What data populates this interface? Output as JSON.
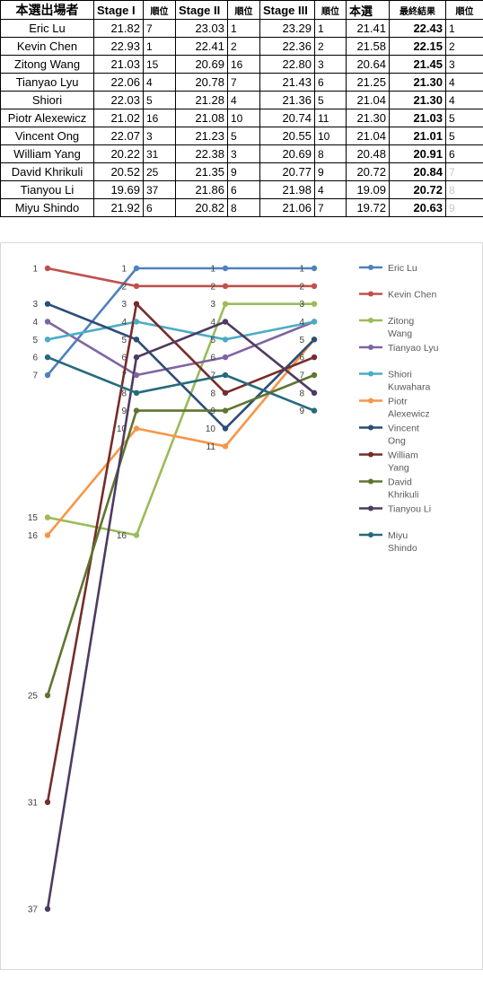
{
  "table": {
    "headers": [
      "本選出場者",
      "Stage I",
      "順位",
      "Stage II",
      "順位",
      "Stage III",
      "順位",
      "本選",
      "最終結果",
      "順位"
    ],
    "rows": [
      {
        "name": "Eric Lu",
        "s1": "21.82",
        "r1": "7",
        "s2": "23.03",
        "r2": "1",
        "s3": "23.29",
        "r3": "1",
        "final": "21.41",
        "result": "22.43",
        "rank": "1",
        "dim": false
      },
      {
        "name": "Kevin Chen",
        "s1": "22.93",
        "r1": "1",
        "s2": "22.41",
        "r2": "2",
        "s3": "22.36",
        "r3": "2",
        "final": "21.58",
        "result": "22.15",
        "rank": "2",
        "dim": false
      },
      {
        "name": "Zitong Wang",
        "s1": "21.03",
        "r1": "15",
        "s2": "20.69",
        "r2": "16",
        "s3": "22.80",
        "r3": "3",
        "final": "20.64",
        "result": "21.45",
        "rank": "3",
        "dim": false
      },
      {
        "name": "Tianyao Lyu",
        "s1": "22.06",
        "r1": "4",
        "s2": "20.78",
        "r2": "7",
        "s3": "21.43",
        "r3": "6",
        "final": "21.25",
        "result": "21.30",
        "rank": "4",
        "dim": false
      },
      {
        "name": "Shiori",
        "s1": "22.03",
        "r1": "5",
        "s2": "21.28",
        "r2": "4",
        "s3": "21.36",
        "r3": "5",
        "final": "21.04",
        "result": "21.30",
        "rank": "4",
        "dim": false
      },
      {
        "name": "Piotr Alexewicz",
        "s1": "21.02",
        "r1": "16",
        "s2": "21.08",
        "r2": "10",
        "s3": "20.74",
        "r3": "11",
        "final": "21.30",
        "result": "21.03",
        "rank": "5",
        "dim": false
      },
      {
        "name": "Vincent Ong",
        "s1": "22.07",
        "r1": "3",
        "s2": "21.23",
        "r2": "5",
        "s3": "20.55",
        "r3": "10",
        "final": "21.04",
        "result": "21.01",
        "rank": "5",
        "dim": false
      },
      {
        "name": "William Yang",
        "s1": "20.22",
        "r1": "31",
        "s2": "22.38",
        "r2": "3",
        "s3": "20.69",
        "r3": "8",
        "final": "20.48",
        "result": "20.91",
        "rank": "6",
        "dim": false
      },
      {
        "name": "David Khrikuli",
        "s1": "20.52",
        "r1": "25",
        "s2": "21.35",
        "r2": "9",
        "s3": "20.77",
        "r3": "9",
        "final": "20.72",
        "result": "20.84",
        "rank": "7",
        "dim": true
      },
      {
        "name": "Tianyou Li",
        "s1": "19.69",
        "r1": "37",
        "s2": "21.86",
        "r2": "6",
        "s3": "21.98",
        "r3": "4",
        "final": "19.09",
        "result": "20.72",
        "rank": "8",
        "dim": true
      },
      {
        "name": "Miyu Shindo",
        "s1": "21.92",
        "r1": "6",
        "s2": "20.82",
        "r2": "8",
        "s3": "21.06",
        "r3": "7",
        "final": "19.72",
        "result": "20.63",
        "rank": "9",
        "dim": true
      }
    ]
  },
  "chart_data": {
    "type": "line",
    "x": [
      "",
      "",
      "",
      ""
    ],
    "y_reversed": true,
    "ylim": [
      1,
      37
    ],
    "grid": false,
    "legend_placement": "right",
    "series": [
      {
        "name": "Eric Lu",
        "legend": [
          "Eric Lu"
        ],
        "color": "#4f81bd",
        "values": [
          7,
          1,
          1,
          1
        ]
      },
      {
        "name": "Kevin Chen",
        "legend": [
          "Kevin Chen"
        ],
        "color": "#c0504d",
        "values": [
          1,
          2,
          2,
          2
        ]
      },
      {
        "name": "Zitong Wang",
        "legend": [
          "Zitong",
          "Wang"
        ],
        "color": "#9bbb59",
        "values": [
          15,
          16,
          3,
          3
        ]
      },
      {
        "name": "Tianyao Lyu",
        "legend": [
          "Tianyao Lyu"
        ],
        "color": "#8064a2",
        "values": [
          4,
          7,
          6,
          4
        ]
      },
      {
        "name": "Shiori Kuwahara",
        "legend": [
          "Shiori",
          "Kuwahara"
        ],
        "color": "#4bacc6",
        "values": [
          5,
          4,
          5,
          4
        ]
      },
      {
        "name": "Piotr Alexewicz",
        "legend": [
          "Piotr",
          "Alexewicz"
        ],
        "color": "#f79646",
        "values": [
          16,
          10,
          11,
          5
        ]
      },
      {
        "name": "Vincent Ong",
        "legend": [
          "Vincent",
          "Ong"
        ],
        "color": "#2c4d75",
        "values": [
          3,
          5,
          10,
          5
        ]
      },
      {
        "name": "William Yang",
        "legend": [
          "William",
          "Yang"
        ],
        "color": "#772c2a",
        "values": [
          31,
          3,
          8,
          6
        ]
      },
      {
        "name": "David Khrikuli",
        "legend": [
          "David",
          "Khrikuli"
        ],
        "color": "#5f7530",
        "values": [
          25,
          9,
          9,
          7
        ]
      },
      {
        "name": "Tianyou Li",
        "legend": [
          "Tianyou Li"
        ],
        "color": "#4d3b62",
        "values": [
          37,
          6,
          4,
          8
        ]
      },
      {
        "name": "Miyu Shindo",
        "legend": [
          "Miyu",
          "Shindo"
        ],
        "color": "#276a7c",
        "values": [
          6,
          8,
          7,
          9
        ]
      }
    ]
  }
}
